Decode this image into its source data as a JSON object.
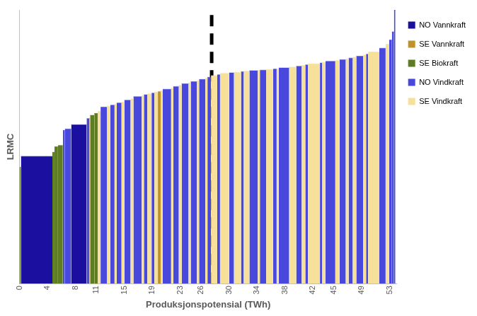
{
  "chart_data": {
    "type": "supply_curve",
    "x_label": "Produksjonspotensial (TWh)",
    "y_label": "LRMC",
    "xlim": [
      0,
      54
    ],
    "xticks": [
      0,
      4,
      8,
      11,
      15,
      19,
      23,
      26,
      30,
      34,
      38,
      42,
      45,
      49,
      53
    ],
    "ylim": [
      0,
      100
    ],
    "tick_labels": "x",
    "grid": false,
    "legend": "right",
    "series": [
      {
        "name": "NO Vannkraft",
        "color": "#1a0f9e"
      },
      {
        "name": "SE Vannkraft",
        "color": "#c0922a"
      },
      {
        "name": "SE Biokraft",
        "color": "#5e7d22"
      },
      {
        "name": "NO Vindkraft",
        "color": "#4848dc"
      },
      {
        "name": "SE Vindkraft",
        "color": "#f6e09a"
      }
    ],
    "widths": [
      0.2,
      4.5,
      0.3,
      0.5,
      0.7,
      0.3,
      0.9,
      2.2,
      0.4,
      0.1,
      0.6,
      0.5,
      0.4,
      0.9,
      0.5,
      0.6,
      0.3,
      0.7,
      0.4,
      0.9,
      0.4,
      1.2,
      0.3,
      0.5,
      0.6,
      0.4,
      0.5,
      0.4,
      0.3,
      1.2,
      0.3,
      0.8,
      0.4,
      1.0,
      0.3,
      0.9,
      0.3,
      0.9,
      0.3,
      0.5,
      0.9,
      0.4,
      1.3,
      0.7,
      1.0,
      0.4,
      0.8,
      1.2,
      0.3,
      0.9,
      1.0,
      0.5,
      0.3,
      1.5,
      1.0,
      0.8,
      0.5,
      0.4,
      1.7,
      0.3,
      0.5,
      1.4,
      0.6,
      0.9,
      0.4,
      0.6,
      0.5,
      1.0,
      0.4,
      0.3,
      1.6,
      0.9,
      0.5,
      0.4,
      0.3,
      0.2
    ],
    "values": [
      42.5,
      46.5,
      48,
      50,
      50.5,
      56,
      56.5,
      58,
      60.3,
      60.5,
      61.5,
      62.2,
      63,
      64.5,
      64.8,
      65.2,
      65.5,
      66,
      66.3,
      67,
      67.5,
      68.3,
      68.7,
      69,
      69.3,
      69.6,
      69.9,
      70.2,
      70.4,
      71,
      71.4,
      72,
      72.4,
      73,
      73.4,
      73.8,
      74.1,
      74.6,
      75,
      75.4,
      76,
      76.3,
      76.8,
      77,
      77.2,
      77.4,
      77.6,
      77.8,
      77.9,
      78,
      78.2,
      78.4,
      78.5,
      78.8,
      79.1,
      79.4,
      79.7,
      79.9,
      80.3,
      80.6,
      80.8,
      81.2,
      81.5,
      81.8,
      82.1,
      82.4,
      82.7,
      83.1,
      83.5,
      83.8,
      84.6,
      86,
      87.5,
      89,
      92,
      100
    ],
    "series_index": [
      2,
      0,
      2,
      2,
      2,
      3,
      3,
      0,
      3,
      1,
      2,
      2,
      4,
      3,
      4,
      3,
      4,
      3,
      4,
      3,
      4,
      3,
      4,
      3,
      4,
      3,
      4,
      1,
      4,
      3,
      4,
      3,
      4,
      3,
      4,
      3,
      4,
      3,
      4,
      3,
      4,
      3,
      4,
      3,
      4,
      3,
      4,
      3,
      4,
      3,
      4,
      3,
      4,
      3,
      4,
      3,
      4,
      3,
      4,
      3,
      4,
      3,
      4,
      3,
      4,
      3,
      4,
      3,
      4,
      3,
      4,
      3,
      4,
      3,
      3,
      3
    ],
    "reference_line": {
      "x": 27.5,
      "line_style": "dashed",
      "color": "#000000"
    }
  }
}
